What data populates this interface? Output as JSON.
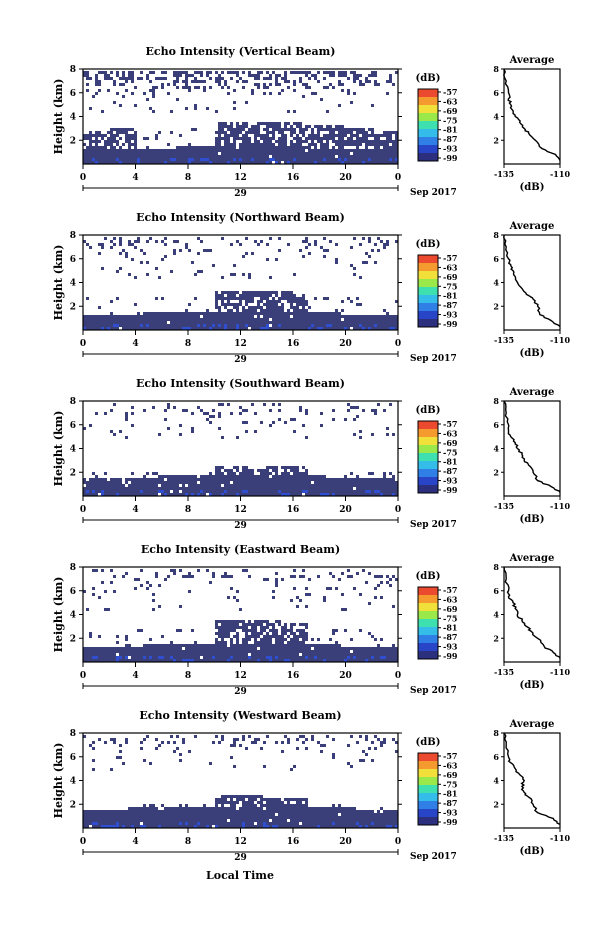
{
  "figure": {
    "bottom_label": "Local Time",
    "date_label": "Sep 2017",
    "day_label": "29",
    "time_ticks": [
      "0",
      "4",
      "8",
      "12",
      "16",
      "20",
      "0"
    ],
    "height_ticks": [
      "2",
      "4",
      "6",
      "8"
    ],
    "height_axis_label": "Height (km)",
    "colorbar_unit": "(dB)",
    "colorbar_ticks": [
      "-57",
      "-63",
      "-69",
      "-75",
      "-81",
      "-87",
      "-93",
      "-99"
    ],
    "average_title": "Average",
    "average_xticks": [
      "-135",
      "-110"
    ],
    "average_xlabel": "(dB)"
  },
  "chart_data": [
    {
      "type": "heatmap",
      "title": "Echo Intensity (Vertical Beam)",
      "x_range_hours": [
        0,
        24
      ],
      "y_range_km": [
        0,
        8
      ],
      "colorbar_range_db": [
        -99,
        -57
      ],
      "dense_layer_top_km": 1.2,
      "mid_layer_top_km": 2.8,
      "upper_echo_km": [
        6,
        8
      ],
      "avg_profile": {
        "type": "line",
        "xlim": [
          -135,
          -110
        ],
        "ylim": [
          0,
          8
        ],
        "x": [
          -110,
          -112,
          -118,
          -121,
          -124,
          -126,
          -128,
          -130,
          -131,
          -132,
          -133,
          -133,
          -134,
          -135
        ],
        "y": [
          0.3,
          0.8,
          1.3,
          2.0,
          2.6,
          3.0,
          3.5,
          4.0,
          4.5,
          5.0,
          5.5,
          6.0,
          7.0,
          8.0
        ]
      }
    },
    {
      "type": "heatmap",
      "title": "Echo Intensity (Northward Beam)",
      "x_range_hours": [
        0,
        24
      ],
      "y_range_km": [
        0,
        8
      ],
      "colorbar_range_db": [
        -99,
        -57
      ],
      "dense_layer_top_km": 1.3,
      "mid_layer_top_km": 2.5,
      "upper_echo_km": [
        6,
        8
      ],
      "avg_profile": {
        "type": "line",
        "xlim": [
          -135,
          -110
        ],
        "ylim": [
          0,
          8
        ],
        "x": [
          -110,
          -114,
          -119,
          -120,
          -122,
          -125,
          -127,
          -129,
          -130,
          -131,
          -132,
          -133,
          -134,
          -135
        ],
        "y": [
          0.3,
          0.8,
          1.3,
          2.0,
          2.6,
          3.0,
          3.5,
          4.0,
          4.5,
          5.0,
          5.5,
          6.0,
          7.0,
          8.0
        ]
      }
    },
    {
      "type": "heatmap",
      "title": "Echo Intensity (Southward Beam)",
      "x_range_hours": [
        0,
        24
      ],
      "y_range_km": [
        0,
        8
      ],
      "colorbar_range_db": [
        -99,
        -57
      ],
      "dense_layer_top_km": 1.5,
      "mid_layer_top_km": 1.8,
      "upper_echo_km": [
        6.5,
        8
      ],
      "avg_profile": {
        "type": "line",
        "xlim": [
          -135,
          -110
        ],
        "ylim": [
          0,
          8
        ],
        "x": [
          -110,
          -114,
          -120,
          -122,
          -124,
          -126,
          -127,
          -129,
          -130,
          -132,
          -133,
          -133,
          -134,
          -135
        ],
        "y": [
          0.3,
          0.8,
          1.3,
          2.0,
          2.6,
          3.0,
          3.5,
          4.0,
          4.5,
          5.0,
          5.5,
          6.0,
          7.0,
          8.0
        ]
      }
    },
    {
      "type": "heatmap",
      "title": "Echo Intensity (Eastward Beam)",
      "x_range_hours": [
        0,
        24
      ],
      "y_range_km": [
        0,
        8
      ],
      "colorbar_range_db": [
        -99,
        -57
      ],
      "dense_layer_top_km": 1.3,
      "mid_layer_top_km": 2.7,
      "upper_echo_km": [
        6,
        8
      ],
      "avg_profile": {
        "type": "line",
        "xlim": [
          -135,
          -110
        ],
        "ylim": [
          0,
          8
        ],
        "x": [
          -110,
          -113,
          -117,
          -120,
          -123,
          -125,
          -127,
          -129,
          -130,
          -131,
          -133,
          -133,
          -134,
          -135
        ],
        "y": [
          0.3,
          0.8,
          1.3,
          2.0,
          2.6,
          3.0,
          3.5,
          4.0,
          4.5,
          5.0,
          5.5,
          6.0,
          7.0,
          8.0
        ]
      }
    },
    {
      "type": "heatmap",
      "title": "Echo Intensity (Westward Beam)",
      "x_range_hours": [
        0,
        24
      ],
      "y_range_km": [
        0,
        8
      ],
      "colorbar_range_db": [
        -99,
        -57
      ],
      "dense_layer_top_km": 1.6,
      "mid_layer_top_km": 1.9,
      "upper_echo_km": [
        6.5,
        8
      ],
      "avg_profile": {
        "type": "line",
        "xlim": [
          -135,
          -110
        ],
        "ylim": [
          0,
          8
        ],
        "x": [
          -110,
          -113,
          -120,
          -122,
          -124,
          -126,
          -127,
          -126,
          -128,
          -130,
          -132,
          -133,
          -134,
          -135
        ],
        "y": [
          0.3,
          0.8,
          1.3,
          2.0,
          2.6,
          3.0,
          3.5,
          4.0,
          4.5,
          5.0,
          5.5,
          6.0,
          7.0,
          8.0
        ]
      }
    }
  ],
  "colors": {
    "colorbar": [
      "#2b2f7e",
      "#2845c8",
      "#2f7fe6",
      "#33bde8",
      "#3fe0b0",
      "#9ae84a",
      "#f2e03a",
      "#f59a2e",
      "#ec4a2e"
    ],
    "echo_dense": "#3a3f7a",
    "echo_sparse": "#2e3270",
    "echo_blue": "#2f4fd0"
  }
}
